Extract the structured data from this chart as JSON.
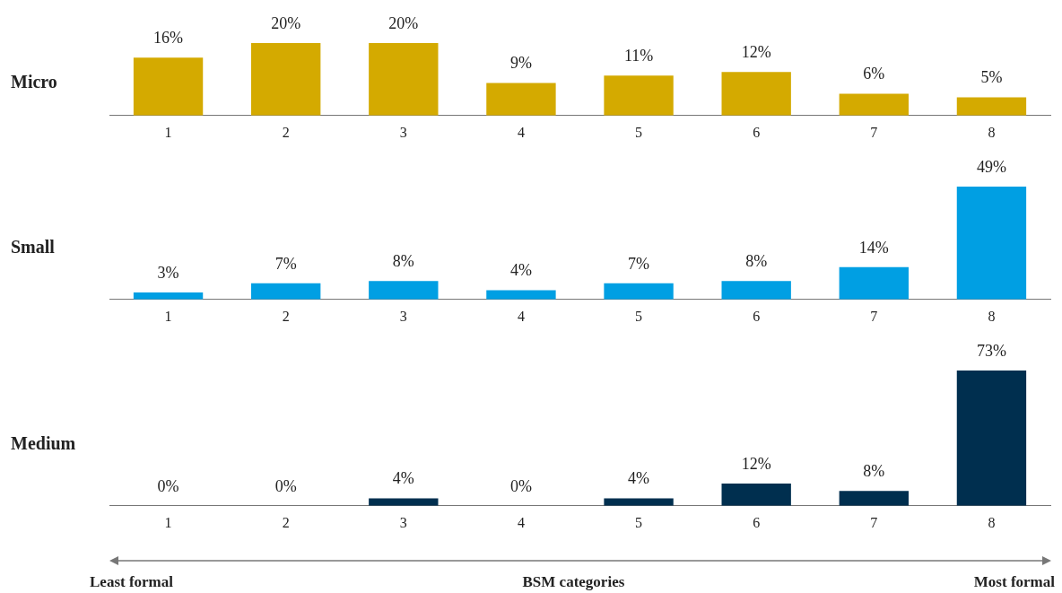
{
  "chart_data": [
    {
      "type": "bar",
      "ylabel": "Micro",
      "categories": [
        "1",
        "2",
        "3",
        "4",
        "5",
        "6",
        "7",
        "8"
      ],
      "values": [
        16,
        20,
        20,
        9,
        11,
        12,
        6,
        5
      ],
      "color": "#d4aa00",
      "value_labels": [
        "16%",
        "20%",
        "20%",
        "9%",
        "11%",
        "12%",
        "6%",
        "5%"
      ]
    },
    {
      "type": "bar",
      "ylabel": "Small",
      "categories": [
        "1",
        "2",
        "3",
        "4",
        "5",
        "6",
        "7",
        "8"
      ],
      "values": [
        3,
        7,
        8,
        4,
        7,
        8,
        14,
        49
      ],
      "color": "#009fe3",
      "value_labels": [
        "3%",
        "7%",
        "8%",
        "4%",
        "7%",
        "8%",
        "14%",
        "49%"
      ]
    },
    {
      "type": "bar",
      "ylabel": "Medium",
      "categories": [
        "1",
        "2",
        "3",
        "4",
        "5",
        "6",
        "7",
        "8"
      ],
      "values": [
        0,
        0,
        4,
        0,
        4,
        12,
        8,
        73
      ],
      "color": "#002f4f",
      "value_labels": [
        "0%",
        "0%",
        "4%",
        "0%",
        "4%",
        "12%",
        "8%",
        "73%"
      ],
      "annotations": [
        "Least formal",
        "BSM categories",
        "Most formal"
      ]
    }
  ]
}
